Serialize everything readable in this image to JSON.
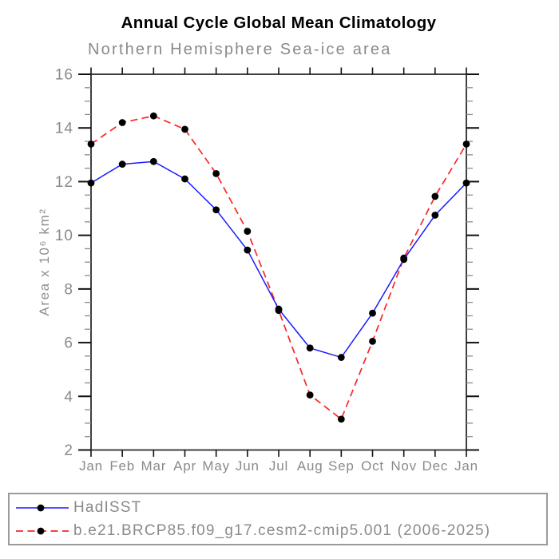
{
  "title": "Annual Cycle Global Mean Climatology",
  "subtitle": "Northern Hemisphere Sea-ice area",
  "chart_data": {
    "type": "line",
    "title": "Annual Cycle Global Mean Climatology",
    "subtitle": "Northern Hemisphere Sea-ice area",
    "categories": [
      "Jan",
      "Feb",
      "Mar",
      "Apr",
      "May",
      "Jun",
      "Jul",
      "Aug",
      "Sep",
      "Oct",
      "Nov",
      "Dec",
      "Jan"
    ],
    "series": [
      {
        "name": "HadISST",
        "color": "#1a1aff",
        "line_style": "solid",
        "marker": "filled-circle",
        "marker_color": "#000000",
        "values": [
          11.95,
          12.65,
          12.75,
          12.1,
          10.95,
          9.45,
          7.25,
          5.8,
          5.45,
          7.1,
          9.1,
          10.75,
          11.95
        ]
      },
      {
        "name": "b.e21.BRCP85.f09_g17.cesm2-cmip5.001 (2006-2025)",
        "color": "#fa2626",
        "line_style": "dashed",
        "marker": "filled-circle",
        "marker_color": "#000000",
        "values": [
          13.4,
          14.2,
          14.45,
          13.95,
          12.3,
          10.15,
          7.2,
          4.05,
          3.15,
          6.05,
          9.15,
          11.45,
          13.4
        ]
      }
    ],
    "xlabel": "",
    "ylabel": "Area x 10⁶ km²",
    "ylim": [
      2,
      16
    ],
    "ytick_major_step": 2,
    "ytick_minor_step": 0.5,
    "ytick_labels": [
      "2",
      "4",
      "6",
      "8",
      "10",
      "12",
      "14",
      "16"
    ],
    "grid": false,
    "legend_position": "bottom-left-box"
  },
  "colors": {
    "frame": "#3f3f3f",
    "major_tick": "#111111",
    "minor_tick": "#8c8c8c",
    "tick_label": "#8a8a8a",
    "title_text": "#000000",
    "secondary_text": "#8a8a8a",
    "legend_border": "#9b9b9b",
    "background": "#ffffff"
  }
}
